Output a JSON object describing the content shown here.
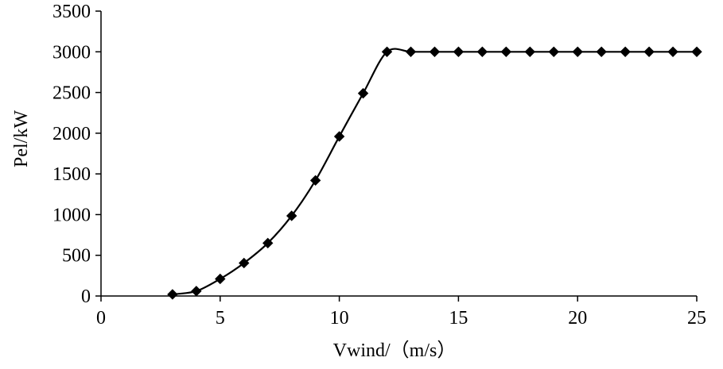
{
  "chart_data": {
    "type": "line",
    "title": "",
    "xlabel": "Vwind/（m/s）",
    "ylabel": "Pel/kW",
    "xlim": [
      0,
      25
    ],
    "ylim": [
      0,
      3500
    ],
    "xticks": [
      0,
      5,
      10,
      15,
      20,
      25
    ],
    "yticks": [
      0,
      500,
      1000,
      1500,
      2000,
      2500,
      3000,
      3500
    ],
    "grid": false,
    "legend": "none",
    "marker": "diamond",
    "line_color": "#000000",
    "series": [
      {
        "x": [
          3,
          4,
          5,
          6,
          7,
          8,
          9,
          10,
          11,
          12,
          13,
          14,
          15,
          16,
          17,
          18,
          19,
          20,
          21,
          22,
          23,
          24,
          25
        ],
        "y": [
          20,
          60,
          210,
          405,
          650,
          985,
          1420,
          1960,
          2490,
          3000,
          3000,
          3000,
          3000,
          3000,
          3000,
          3000,
          3000,
          3000,
          3000,
          3000,
          3000,
          3000,
          3000
        ]
      }
    ]
  }
}
